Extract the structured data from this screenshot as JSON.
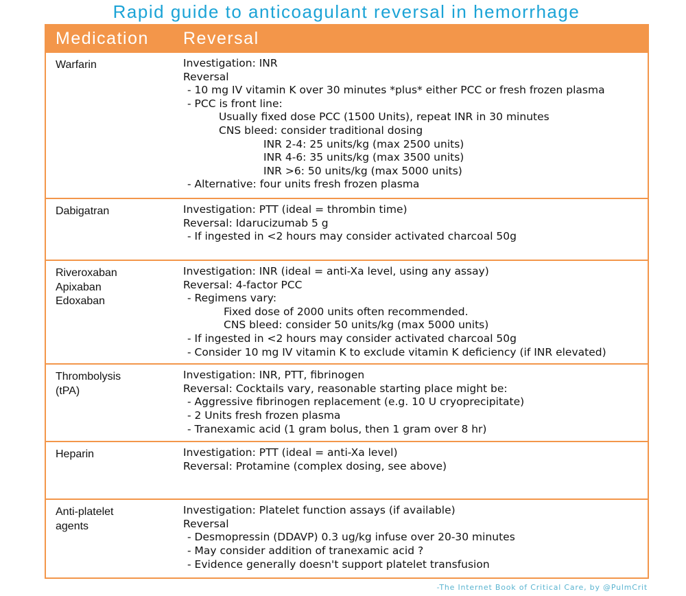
{
  "title": "Rapid guide to anticoagulant reversal in hemorrhage",
  "headers": {
    "medication": "Medication",
    "reversal": "Reversal"
  },
  "rows": [
    {
      "medication": [
        "Warfarin"
      ],
      "h": 211,
      "lines": [
        [
          "l0",
          "Investigation:  INR"
        ],
        [
          "l0",
          "Reversal"
        ],
        [
          "l1",
          "- 10 mg IV vitamin K over 30 minutes *plus* either PCC or fresh frozen plasma"
        ],
        [
          "l1",
          "- PCC is front line:"
        ],
        [
          "l2",
          "Usually fixed dose PCC (1500 Units), repeat INR in 30 minutes"
        ],
        [
          "l2",
          "CNS bleed: consider traditional dosing"
        ],
        [
          "l3",
          "INR 2-4:  25 units/kg (max 2500 units)"
        ],
        [
          "l3",
          "INR 4-6:  35 units/kg (max 3500 units)"
        ],
        [
          "l3",
          "INR >6:   50 units/kg (max 5000 units)"
        ],
        [
          "l1",
          "- Alternative: four units fresh frozen plasma"
        ]
      ]
    },
    {
      "medication": [
        "Dabigatran"
      ],
      "h": 113,
      "lines": [
        [
          "l0",
          "Investigation:  PTT (ideal = thrombin time)"
        ],
        [
          "l0",
          "Reversal: Idarucizumab 5 g"
        ],
        [
          "l1",
          " -  If ingested in <2 hours may consider activated charcoal 50g"
        ]
      ]
    },
    {
      "medication": [
        "Riveroxaban",
        "Apixaban",
        "Edoxaban"
      ],
      "h": 122,
      "lines": [
        [
          "l0",
          "Investigation:  INR  (ideal = anti-Xa level, using any assay)"
        ],
        [
          "l0",
          "Reversal:  4-factor PCC"
        ],
        [
          "l1",
          "- Regimens vary:"
        ],
        [
          "l2b",
          "Fixed dose of 2000 units often recommended."
        ],
        [
          "l2b",
          "CNS bleed:  consider 50 units/kg (max 5000 units)"
        ],
        [
          "l1",
          "- If ingested in <2 hours may consider activated charcoal 50g"
        ],
        [
          "l1",
          "- Consider 10 mg IV vitamin K to exclude vitamin K deficiency (if INR elevated)"
        ]
      ]
    },
    {
      "medication": [
        "Thrombolysis",
        "(tPA)"
      ],
      "h": 113,
      "lines": [
        [
          "l0",
          "Investigation:  INR, PTT, fibrinogen"
        ],
        [
          "l0",
          "Reversal:  Cocktails vary, reasonable starting place might be:"
        ],
        [
          "l1",
          "- Aggressive fibrinogen replacement (e.g. 10 U cryoprecipitate)"
        ],
        [
          "l1",
          "- 2 Units fresh frozen plasma"
        ],
        [
          "l1",
          "- Tranexamic acid (1 gram bolus, then 1 gram over 8 hr)"
        ]
      ]
    },
    {
      "medication": [
        "Heparin"
      ],
      "h": 84,
      "lines": [
        [
          "l0",
          "Investigation:  PTT (ideal = anti-Xa level)"
        ],
        [
          "l0",
          "Reversal:  Protamine (complex dosing, see above)"
        ]
      ]
    },
    {
      "medication": [
        "Anti-platelet",
        "agents"
      ],
      "h": 115,
      "lines": [
        [
          "l0",
          "Investigation:  Platelet function assays (if available)"
        ],
        [
          "l0",
          "Reversal"
        ],
        [
          "l1",
          "- Desmopressin (DDAVP) 0.3 ug/kg infuse over 20-30 minutes"
        ],
        [
          "l1",
          "- May consider addition of tranexamic acid ?"
        ],
        [
          "l1",
          "- Evidence generally doesn't support platelet transfusion"
        ]
      ]
    }
  ],
  "credit": "-The Internet Book of Critical Care, by @PulmCrit",
  "colors": {
    "accent": "#f3964a",
    "title": "#1ba3d6"
  }
}
